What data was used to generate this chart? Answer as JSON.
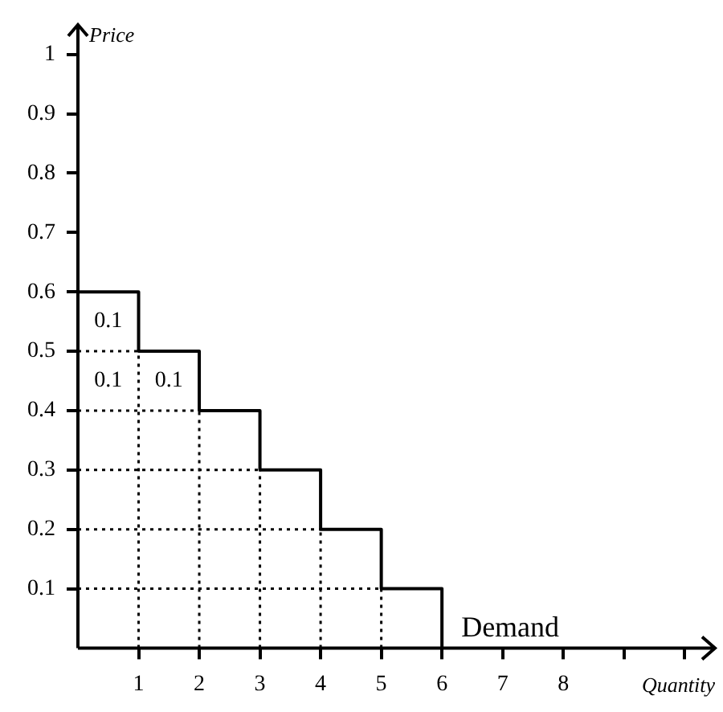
{
  "chart_data": {
    "type": "step",
    "xlabel": "Quantity",
    "ylabel": "Price",
    "x": [
      0,
      1,
      2,
      3,
      4,
      5,
      6
    ],
    "series": [
      {
        "name": "Demand",
        "color": "#000000",
        "values": [
          0.6,
          0.5,
          0.4,
          0.3,
          0.2,
          0.1,
          0
        ]
      },
      {
        "type": "line",
        "line_style": "dotted",
        "color": "#000000",
        "x": [
          0,
          1
        ],
        "values": [
          0.5,
          0.5
        ]
      },
      {
        "type": "line",
        "line_style": "dotted",
        "color": "#000000",
        "x": [
          0,
          2
        ],
        "values": [
          0.4,
          0.4
        ]
      },
      {
        "type": "line",
        "line_style": "dotted",
        "color": "#000000",
        "x": [
          0,
          3
        ],
        "values": [
          0.3,
          0.3
        ]
      },
      {
        "type": "line",
        "line_style": "dotted",
        "color": "#000000",
        "x": [
          0,
          4
        ],
        "values": [
          0.2,
          0.2
        ]
      },
      {
        "type": "line",
        "line_style": "dotted",
        "color": "#000000",
        "x": [
          0,
          5
        ],
        "values": [
          0.1,
          0.1
        ]
      },
      {
        "type": "line",
        "line_style": "dotted",
        "color": "#000000",
        "x": [
          1,
          1
        ],
        "values": [
          0,
          0.5
        ]
      },
      {
        "type": "line",
        "line_style": "dotted",
        "color": "#000000",
        "x": [
          2,
          2
        ],
        "values": [
          0,
          0.4
        ]
      },
      {
        "type": "line",
        "line_style": "dotted",
        "color": "#000000",
        "x": [
          3,
          3
        ],
        "values": [
          0,
          0.3
        ]
      },
      {
        "type": "line",
        "line_style": "dotted",
        "color": "#000000",
        "x": [
          4,
          4
        ],
        "values": [
          0,
          0.2
        ]
      },
      {
        "type": "line",
        "line_style": "dotted",
        "color": "#000000",
        "x": [
          5,
          5
        ],
        "values": [
          0,
          0.1
        ]
      }
    ],
    "xlim": [
      0,
      10.5
    ],
    "xticks": [
      1,
      2,
      3,
      4,
      5,
      6,
      7,
      8,
      {
        "value": 9,
        "label": null
      },
      {
        "value": 10,
        "label": null
      }
    ],
    "ylim": [
      0,
      1.05
    ],
    "yticks": [
      0.1,
      0.2,
      0.3,
      0.4,
      0.5,
      0.6,
      0.7,
      0.8,
      0.9,
      1
    ],
    "legend": false,
    "marker": "none",
    "line_style": "solid",
    "annotations": [
      "0.1",
      "0.1",
      "0.1"
    ]
  }
}
